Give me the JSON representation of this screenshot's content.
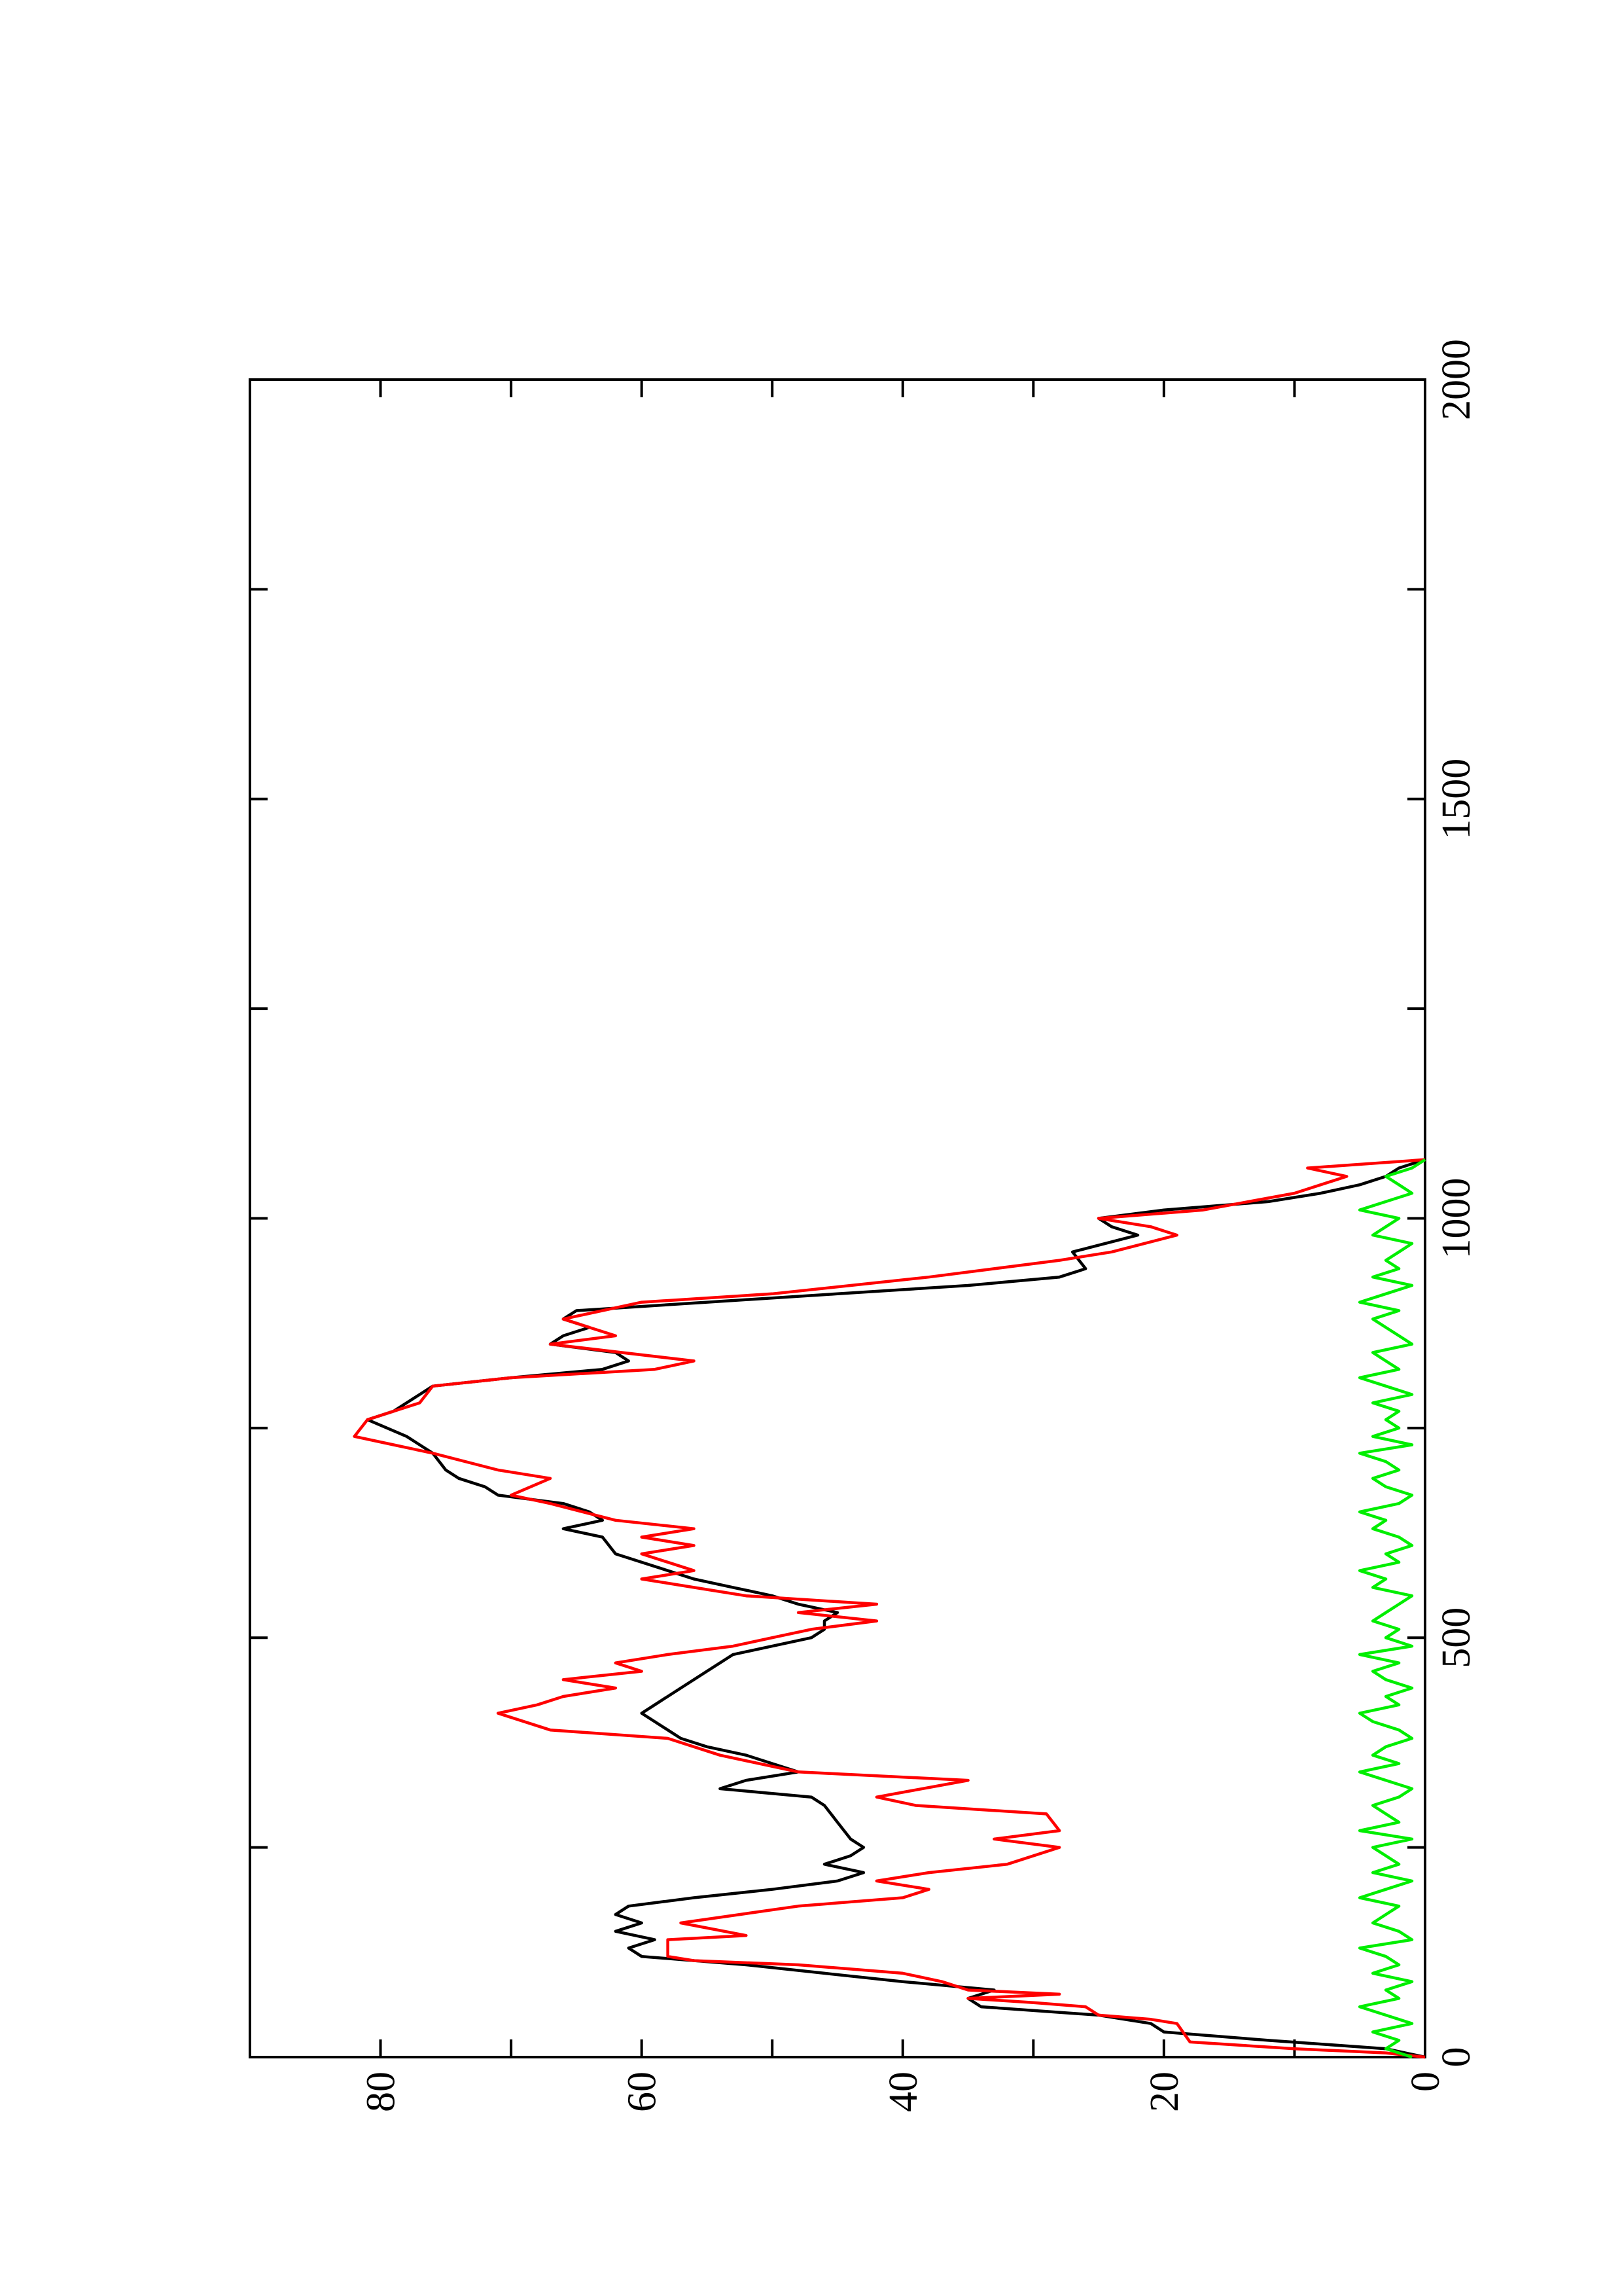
{
  "chart_data": {
    "type": "line",
    "xlim": [
      0,
      2000
    ],
    "xticks": [
      0,
      500,
      1000,
      1500,
      2000
    ],
    "xminor_ticks": [
      250,
      750,
      1250,
      1750
    ],
    "ylim": [
      0,
      90
    ],
    "yticks": [
      0,
      20,
      40,
      60,
      80
    ],
    "yminor_ticks": [
      10,
      30,
      50,
      70
    ],
    "series": [
      {
        "color": "#000000",
        "x": [
          0,
          10,
          20,
          30,
          40,
          50,
          60,
          70,
          80,
          90,
          100,
          110,
          120,
          130,
          140,
          150,
          160,
          170,
          180,
          190,
          200,
          210,
          220,
          230,
          240,
          250,
          260,
          280,
          300,
          310,
          320,
          330,
          340,
          350,
          360,
          370,
          380,
          390,
          400,
          410,
          420,
          440,
          460,
          480,
          490,
          500,
          510,
          520,
          530,
          540,
          550,
          560,
          570,
          580,
          600,
          620,
          630,
          640,
          650,
          660,
          670,
          680,
          690,
          700,
          720,
          740,
          760,
          770,
          790,
          800,
          810,
          820,
          830,
          840,
          850,
          860,
          870,
          880,
          890,
          900,
          910,
          920,
          930,
          940,
          960,
          980,
          990,
          1000,
          1010,
          1020,
          1030,
          1040,
          1050,
          1060,
          1070
        ],
        "values": [
          0,
          3,
          12,
          20,
          21,
          25,
          34,
          35,
          33,
          40,
          46,
          52,
          60,
          61,
          59,
          62,
          60,
          62,
          61,
          56,
          50,
          45,
          43,
          46,
          44,
          43,
          44,
          45,
          46,
          47,
          54,
          52,
          48,
          50,
          52,
          55,
          57,
          58,
          59,
          60,
          59,
          57,
          55,
          53,
          50,
          47,
          46,
          46,
          45,
          48,
          50,
          53,
          56,
          58,
          62,
          63,
          66,
          63,
          64,
          66,
          71,
          72,
          74,
          75,
          76,
          78,
          81,
          79,
          77,
          76,
          70,
          63,
          61,
          62,
          67,
          66,
          64,
          66,
          65,
          55,
          45,
          35,
          28,
          26,
          27,
          22,
          24,
          25,
          20,
          12,
          8,
          5,
          3,
          2,
          0
        ]
      },
      {
        "color": "#ff0000",
        "x": [
          0,
          5,
          10,
          18,
          40,
          45,
          50,
          60,
          65,
          70,
          75,
          80,
          90,
          100,
          110,
          115,
          120,
          140,
          145,
          160,
          180,
          190,
          200,
          210,
          220,
          230,
          250,
          260,
          270,
          290,
          300,
          310,
          330,
          340,
          360,
          380,
          390,
          410,
          420,
          430,
          440,
          450,
          460,
          470,
          480,
          490,
          500,
          510,
          520,
          530,
          540,
          550,
          560,
          570,
          580,
          600,
          610,
          620,
          630,
          640,
          660,
          670,
          690,
          700,
          720,
          730,
          740,
          760,
          770,
          780,
          800,
          810,
          820,
          830,
          850,
          860,
          870,
          880,
          900,
          910,
          930,
          950,
          960,
          980,
          990,
          1000,
          1010,
          1030,
          1050,
          1060,
          1070
        ],
        "values": [
          0,
          3,
          10,
          18,
          19,
          21,
          25,
          26,
          30,
          35,
          28,
          35,
          37,
          40,
          48,
          56,
          58,
          58,
          52,
          57,
          48,
          40,
          38,
          42,
          38,
          32,
          28,
          33,
          28,
          29,
          39,
          42,
          35,
          48,
          54,
          58,
          67,
          71,
          68,
          66,
          62,
          66,
          60,
          62,
          58,
          53,
          50,
          47,
          42,
          48,
          42,
          52,
          56,
          60,
          56,
          60,
          56,
          60,
          56,
          62,
          67,
          70,
          67,
          71,
          76,
          79,
          82,
          81,
          79,
          77,
          76,
          70,
          59,
          56,
          67,
          62,
          64,
          66,
          60,
          50,
          38,
          28,
          24,
          19,
          21,
          25,
          17,
          10,
          6,
          9,
          0
        ]
      },
      {
        "color": "#00ee00",
        "x": [
          0,
          10,
          20,
          30,
          40,
          50,
          60,
          70,
          80,
          90,
          100,
          110,
          120,
          130,
          140,
          150,
          160,
          170,
          180,
          190,
          200,
          210,
          220,
          230,
          240,
          250,
          260,
          270,
          280,
          290,
          300,
          310,
          320,
          330,
          340,
          350,
          360,
          370,
          380,
          390,
          400,
          410,
          420,
          430,
          440,
          450,
          460,
          470,
          480,
          490,
          500,
          510,
          520,
          530,
          540,
          550,
          560,
          570,
          580,
          590,
          600,
          610,
          620,
          630,
          640,
          650,
          660,
          670,
          680,
          690,
          700,
          710,
          720,
          730,
          740,
          750,
          760,
          770,
          780,
          790,
          800,
          810,
          820,
          830,
          840,
          850,
          860,
          870,
          880,
          890,
          900,
          910,
          920,
          930,
          940,
          950,
          960,
          970,
          980,
          990,
          1000,
          1010,
          1020,
          1030,
          1040,
          1050,
          1060,
          1070
        ],
        "values": [
          1,
          3,
          2,
          4,
          1,
          3,
          5,
          2,
          3,
          1,
          4,
          2,
          3,
          5,
          1,
          2,
          4,
          3,
          2,
          5,
          3,
          1,
          4,
          2,
          3,
          4,
          1,
          5,
          2,
          3,
          4,
          2,
          1,
          3,
          5,
          2,
          4,
          3,
          1,
          2,
          4,
          5,
          2,
          3,
          1,
          3,
          4,
          2,
          5,
          1,
          3,
          2,
          4,
          3,
          2,
          1,
          4,
          3,
          5,
          2,
          3,
          1,
          2,
          4,
          3,
          5,
          2,
          1,
          3,
          4,
          2,
          3,
          5,
          1,
          4,
          2,
          3,
          2,
          4,
          1,
          3,
          5,
          2,
          3,
          4,
          1,
          2,
          3,
          4,
          2,
          5,
          3,
          1,
          4,
          2,
          3,
          2,
          1,
          4,
          3,
          2,
          5,
          3,
          1,
          2,
          3,
          1,
          0
        ]
      }
    ]
  }
}
